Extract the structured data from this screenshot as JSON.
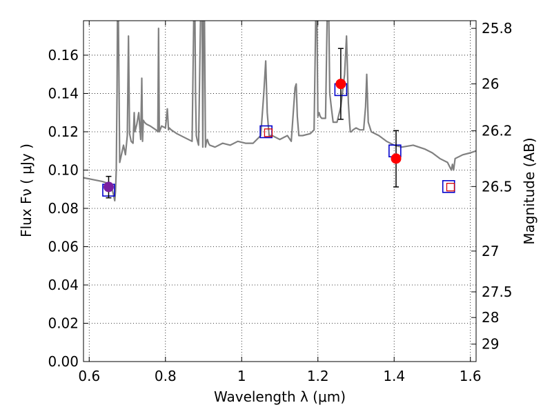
{
  "chart_data": {
    "type": "line",
    "xlabel": "Wavelength  λ (μm)",
    "ylabel_left": "Flux  Fν  ( μJy )",
    "ylabel_right": "Magnitude (AB)",
    "xlim": [
      0.585,
      1.615
    ],
    "ylim": [
      0.0,
      0.178
    ],
    "grid": true,
    "x_ticks": [
      0.6,
      0.8,
      1.0,
      1.2,
      1.4,
      1.6
    ],
    "x_tick_labels": [
      "0.6",
      "0.8",
      "1",
      "1.2",
      "1.4",
      "1.6"
    ],
    "y_ticks": [
      0.0,
      0.02,
      0.04,
      0.06,
      0.08,
      0.1,
      0.12,
      0.14,
      0.16
    ],
    "y_tick_labels": [
      "0.00",
      "0.02",
      "0.04",
      "0.06",
      "0.08",
      "0.10",
      "0.12",
      "0.14",
      "0.16"
    ],
    "right_ticks": [
      {
        "label": "25.8",
        "flux": 0.174
      },
      {
        "label": "26",
        "flux": 0.145
      },
      {
        "label": "26.2",
        "flux": 0.1205
      },
      {
        "label": "26.5",
        "flux": 0.0914
      },
      {
        "label": "27",
        "flux": 0.0577
      },
      {
        "label": "27.5",
        "flux": 0.0364
      },
      {
        "label": "28",
        "flux": 0.023
      },
      {
        "label": "29",
        "flux": 0.0091
      }
    ],
    "series": [
      {
        "kind": "spectrum",
        "color": "#808080",
        "x": [
          0.585,
          0.61,
          0.635,
          0.65,
          0.655,
          0.66,
          0.664,
          0.667,
          0.669,
          0.671,
          0.673,
          0.6745,
          0.676,
          0.68,
          0.69,
          0.695,
          0.7,
          0.703,
          0.706,
          0.71,
          0.715,
          0.718,
          0.72,
          0.725,
          0.73,
          0.735,
          0.738,
          0.74,
          0.742,
          0.745,
          0.75,
          0.76,
          0.775,
          0.78,
          0.782,
          0.784,
          0.786,
          0.79,
          0.8,
          0.805,
          0.808,
          0.81,
          0.815,
          0.83,
          0.85,
          0.87,
          0.875,
          0.877,
          0.879,
          0.881,
          0.883,
          0.887,
          0.893,
          0.896,
          0.898,
          0.9,
          0.902,
          0.905,
          0.908,
          0.91,
          0.913,
          0.916,
          0.93,
          0.95,
          0.97,
          0.99,
          1.01,
          1.03,
          1.05,
          1.058,
          1.063,
          1.067,
          1.072,
          1.08,
          1.1,
          1.12,
          1.13,
          1.14,
          1.143,
          1.146,
          1.15,
          1.16,
          1.18,
          1.19,
          1.195,
          1.197,
          1.2,
          1.203,
          1.206,
          1.21,
          1.22,
          1.225,
          1.228,
          1.231,
          1.235,
          1.24,
          1.25,
          1.26,
          1.27,
          1.275,
          1.28,
          1.283,
          1.285,
          1.288,
          1.292,
          1.3,
          1.31,
          1.32,
          1.325,
          1.328,
          1.332,
          1.34,
          1.36,
          1.38,
          1.4,
          1.42,
          1.45,
          1.48,
          1.5,
          1.52,
          1.54,
          1.55,
          1.553,
          1.556,
          1.56,
          1.58,
          1.6,
          1.615
        ],
        "y": [
          0.096,
          0.095,
          0.094,
          0.093,
          0.092,
          0.09,
          0.087,
          0.084,
          0.089,
          0.1,
          0.14,
          0.19,
          0.19,
          0.104,
          0.113,
          0.108,
          0.118,
          0.17,
          0.119,
          0.115,
          0.114,
          0.13,
          0.12,
          0.124,
          0.13,
          0.116,
          0.148,
          0.115,
          0.126,
          0.125,
          0.124,
          0.123,
          0.121,
          0.12,
          0.174,
          0.12,
          0.121,
          0.123,
          0.122,
          0.132,
          0.121,
          0.122,
          0.121,
          0.119,
          0.117,
          0.115,
          0.19,
          0.19,
          0.14,
          0.118,
          0.116,
          0.113,
          0.19,
          0.19,
          0.112,
          0.19,
          0.19,
          0.112,
          0.115,
          0.116,
          0.114,
          0.113,
          0.112,
          0.114,
          0.113,
          0.115,
          0.114,
          0.114,
          0.118,
          0.14,
          0.157,
          0.13,
          0.118,
          0.118,
          0.116,
          0.118,
          0.115,
          0.143,
          0.145,
          0.128,
          0.118,
          0.118,
          0.119,
          0.121,
          0.19,
          0.19,
          0.128,
          0.13,
          0.128,
          0.127,
          0.127,
          0.19,
          0.19,
          0.14,
          0.133,
          0.125,
          0.125,
          0.133,
          0.15,
          0.17,
          0.135,
          0.125,
          0.12,
          0.12,
          0.121,
          0.122,
          0.121,
          0.121,
          0.133,
          0.15,
          0.125,
          0.12,
          0.118,
          0.115,
          0.113,
          0.112,
          0.113,
          0.111,
          0.109,
          0.106,
          0.104,
          0.1,
          0.103,
          0.1,
          0.106,
          0.108,
          0.109,
          0.11
        ]
      },
      {
        "kind": "model-photometry",
        "marker": "open-square",
        "colors": [
          "#0000cc",
          "#0000cc",
          "#0000cc",
          "#0000cc",
          "#0000cc"
        ],
        "x": [
          0.651,
          1.064,
          1.26,
          1.402,
          1.543
        ],
        "y": [
          0.0895,
          0.12,
          0.142,
          0.11,
          0.0914
        ]
      },
      {
        "kind": "model-photometry-inner",
        "marker": "open-square-small",
        "colors": [
          "#d60000"
        ],
        "x": [
          1.07,
          1.548
        ],
        "y": [
          0.1195,
          0.0911
        ]
      },
      {
        "kind": "observed",
        "marker": "filled-circle",
        "colors": [
          "#7a1fa0",
          "#ff0000",
          "#ff0000"
        ],
        "x": [
          0.651,
          1.26,
          1.405
        ],
        "y": [
          0.0912,
          0.145,
          0.106
        ],
        "yerr": [
          [
            0.0057,
            0.0055
          ],
          [
            0.0185,
            0.0185
          ],
          [
            0.0148,
            0.0146
          ]
        ]
      }
    ]
  }
}
